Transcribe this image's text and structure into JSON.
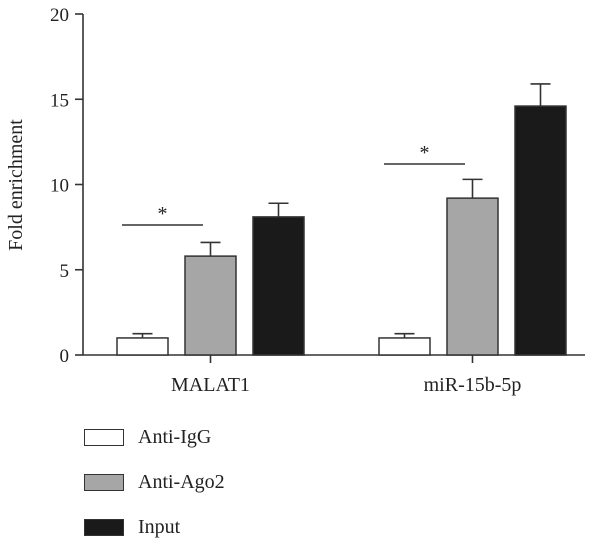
{
  "chart_data": {
    "type": "bar",
    "title": "",
    "xlabel": "",
    "ylabel": "Fold enrichment",
    "ylim": [
      0,
      20
    ],
    "yticks": [
      0,
      5,
      10,
      15,
      20
    ],
    "grid": false,
    "legend_position": "bottom-left",
    "categories": [
      "MALAT1",
      "miR-15b-5p"
    ],
    "series": [
      {
        "name": "Anti-IgG",
        "values": [
          1.0,
          1.0
        ],
        "errors": [
          0.25,
          0.25
        ],
        "color": "#ffffff"
      },
      {
        "name": "Anti-Ago2",
        "values": [
          5.8,
          9.2
        ],
        "errors": [
          0.8,
          1.1
        ],
        "color": "#a6a6a6"
      },
      {
        "name": "Input",
        "values": [
          8.1,
          14.6
        ],
        "errors": [
          0.8,
          1.3
        ],
        "color": "#1a1a1a"
      }
    ],
    "annotations": [
      {
        "text": "*",
        "category": "MALAT1",
        "between": [
          "Anti-IgG",
          "Anti-Ago2"
        ]
      },
      {
        "text": "*",
        "category": "miR-15b-5p",
        "between": [
          "Anti-IgG",
          "Anti-Ago2"
        ]
      }
    ]
  }
}
